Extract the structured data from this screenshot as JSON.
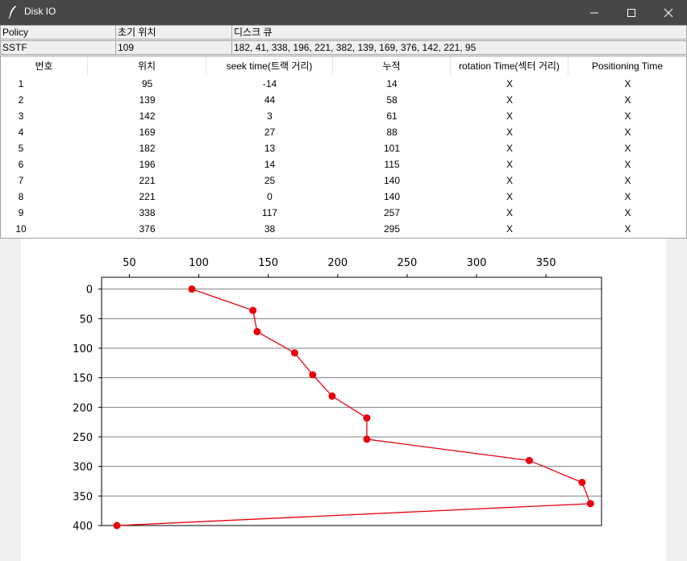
{
  "window": {
    "title": "Disk IO",
    "controls": [
      "minimize",
      "maximize",
      "close"
    ]
  },
  "info": {
    "policy_label": "Policy",
    "initial_label": "초기 위치",
    "queue_label": "디스크 큐",
    "policy_value": "SSTF",
    "initial_value": "109",
    "queue_value": "182, 41, 338, 196, 221, 382, 139, 169, 376, 142, 221, 95"
  },
  "table": {
    "headers": [
      "번호",
      "위치",
      "seek time(트랙 거리)",
      "누적",
      "rotation Time(섹터 거리)",
      "Positioning Time"
    ],
    "rows": [
      [
        "1",
        "95",
        "-14",
        "14",
        "X",
        "X"
      ],
      [
        "2",
        "139",
        "44",
        "58",
        "X",
        "X"
      ],
      [
        "3",
        "142",
        "3",
        "61",
        "X",
        "X"
      ],
      [
        "4",
        "169",
        "27",
        "88",
        "X",
        "X"
      ],
      [
        "5",
        "182",
        "13",
        "101",
        "X",
        "X"
      ],
      [
        "6",
        "196",
        "14",
        "115",
        "X",
        "X"
      ],
      [
        "7",
        "221",
        "25",
        "140",
        "X",
        "X"
      ],
      [
        "8",
        "221",
        "0",
        "140",
        "X",
        "X"
      ],
      [
        "9",
        "338",
        "117",
        "257",
        "X",
        "X"
      ],
      [
        "10",
        "376",
        "38",
        "295",
        "X",
        "X"
      ]
    ]
  },
  "chart_data": {
    "type": "line",
    "series": [
      {
        "x": [
          95,
          139,
          142,
          169,
          182,
          196,
          221,
          221,
          338,
          376,
          382,
          41
        ],
        "y": [
          0,
          36,
          72,
          108,
          145,
          181,
          218,
          254,
          290,
          327,
          363,
          400
        ],
        "color": "#e8000b"
      }
    ],
    "x_ticks": [
      50,
      100,
      150,
      200,
      250,
      300,
      350
    ],
    "y_ticks": [
      0,
      50,
      100,
      150,
      200,
      250,
      300,
      350,
      400
    ],
    "xlim": [
      30,
      390
    ],
    "ylim": [
      400,
      -20
    ],
    "x_axis_position": "top",
    "y_inverted": true,
    "grid": "horizontal"
  },
  "colors": {
    "titlebar": "#474747",
    "series": "#e8000b",
    "grid": "#808080"
  }
}
